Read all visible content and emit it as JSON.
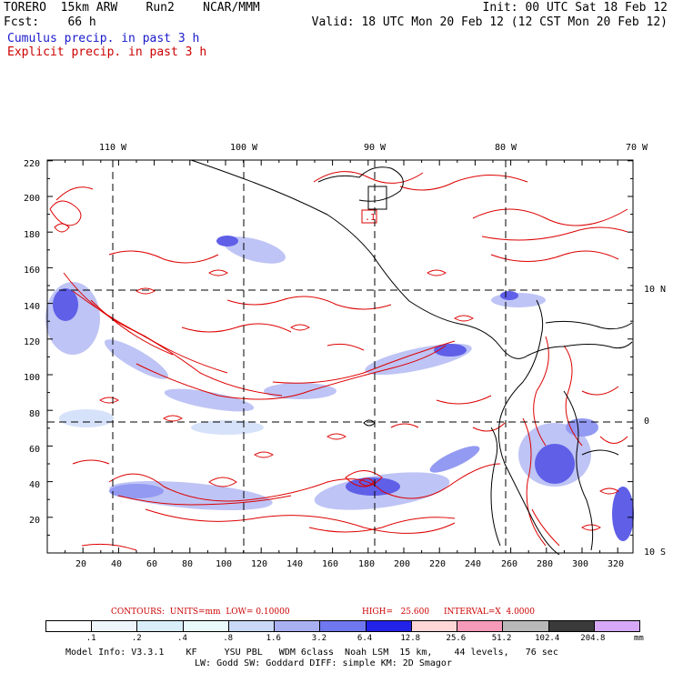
{
  "header": {
    "line1_left": "TORERO  15km ARW    Run2    NCAR/MMM",
    "line2_left": "Fcst:    66 h",
    "line1_right": "Init: 00 UTC Sat 18 Feb 12",
    "line2_right": "Valid: 18 UTC Mon 20 Feb 12 (12 CST Mon 20 Feb 12)"
  },
  "legend": {
    "cumulus": "Cumulus precip. in past 3 h",
    "explicit": "Explicit precip. in past 3 h"
  },
  "map": {
    "lon_labels": [
      "110 W",
      "100 W",
      "90 W",
      "80 W",
      "70 W"
    ],
    "lat_labels": [
      "10 N",
      "0",
      "10 S"
    ],
    "y_ticks": [
      "220",
      "200",
      "180",
      "160",
      "140",
      "120",
      "100",
      "80",
      "60",
      "40",
      "20"
    ],
    "x_ticks": [
      "20",
      "40",
      "60",
      "80",
      "100",
      "120",
      "140",
      "160",
      "180",
      "200",
      "220",
      "240",
      "260",
      "280",
      "300",
      "320"
    ],
    "box_label": ".1",
    "colors": {
      "frame": "#000000",
      "grid": "#000000",
      "explicit": "#dd0000",
      "cumulus": "#2a2ae0",
      "coast": "#000000"
    }
  },
  "contours": {
    "units": "CONTOURS:  UNITS=mm  LOW= 0.10000",
    "high": "HIGH=   25.600",
    "interval": "INTERVAL=X  4.0000"
  },
  "colorbar": {
    "labels": [
      ".1",
      ".2",
      ".4",
      ".8",
      "1.6",
      "3.2",
      "6.4",
      "12.8",
      "25.6",
      "51.2",
      "102.4",
      "204.8"
    ],
    "unit": "mm",
    "colors": [
      "#ffffff",
      "#eef6fb",
      "#d9eef9",
      "#e8fbfa",
      "#c9d9f7",
      "#a9b0f2",
      "#6f78ee",
      "#2222e8",
      "#ffd6d6",
      "#f59ab8",
      "#b8b8b8",
      "#3a3a3a",
      "#d8a8f8"
    ]
  },
  "model_info": {
    "line1": "Model Info: V3.3.1    KF     YSU PBL   WDM 6class  Noah LSM  15 km,    44 levels,   76 sec",
    "line2": "LW: Godd SW: Goddard DIFF: simple KM: 2D Smagor"
  }
}
